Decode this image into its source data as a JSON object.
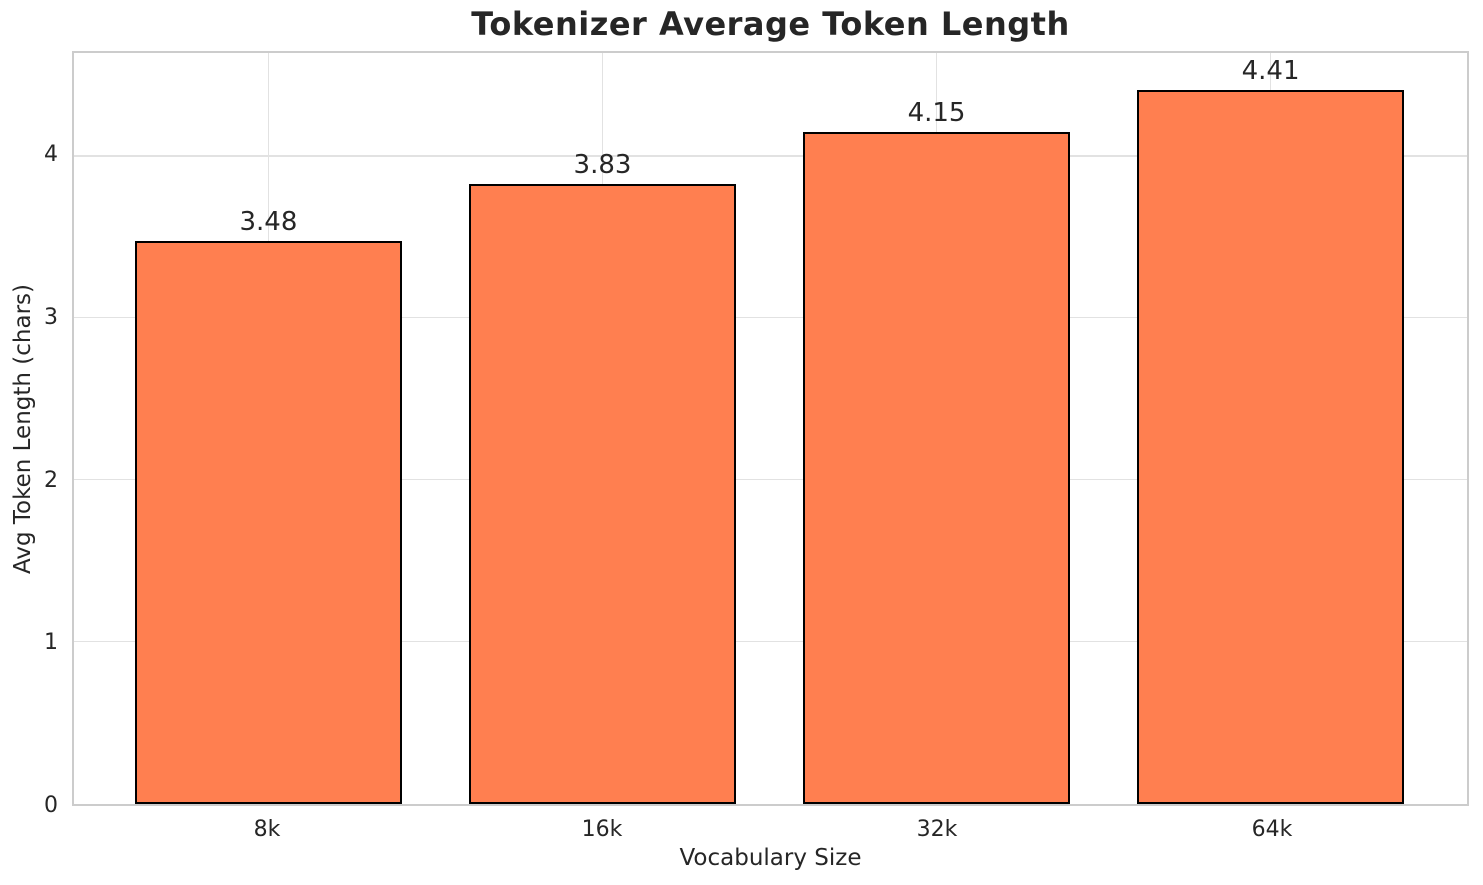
{
  "chart_data": {
    "type": "bar",
    "title": "Tokenizer Average Token Length",
    "xlabel": "Vocabulary Size",
    "ylabel": "Avg Token Length (chars)",
    "categories": [
      "8k",
      "16k",
      "32k",
      "64k"
    ],
    "values": [
      3.48,
      3.83,
      4.15,
      4.41
    ],
    "value_labels": [
      "3.48",
      "3.83",
      "4.15",
      "4.41"
    ],
    "ylim": [
      0,
      4.64
    ],
    "yticks": [
      0,
      1,
      2,
      3,
      4
    ],
    "grid": true,
    "legend": "none",
    "colors": {
      "bar_fill": "#FF7F50",
      "bar_edge": "#000000",
      "grid_line": "#E2E2E2",
      "spine": "#CCCCCC",
      "text": "#262626",
      "background": "#FFFFFF"
    }
  }
}
